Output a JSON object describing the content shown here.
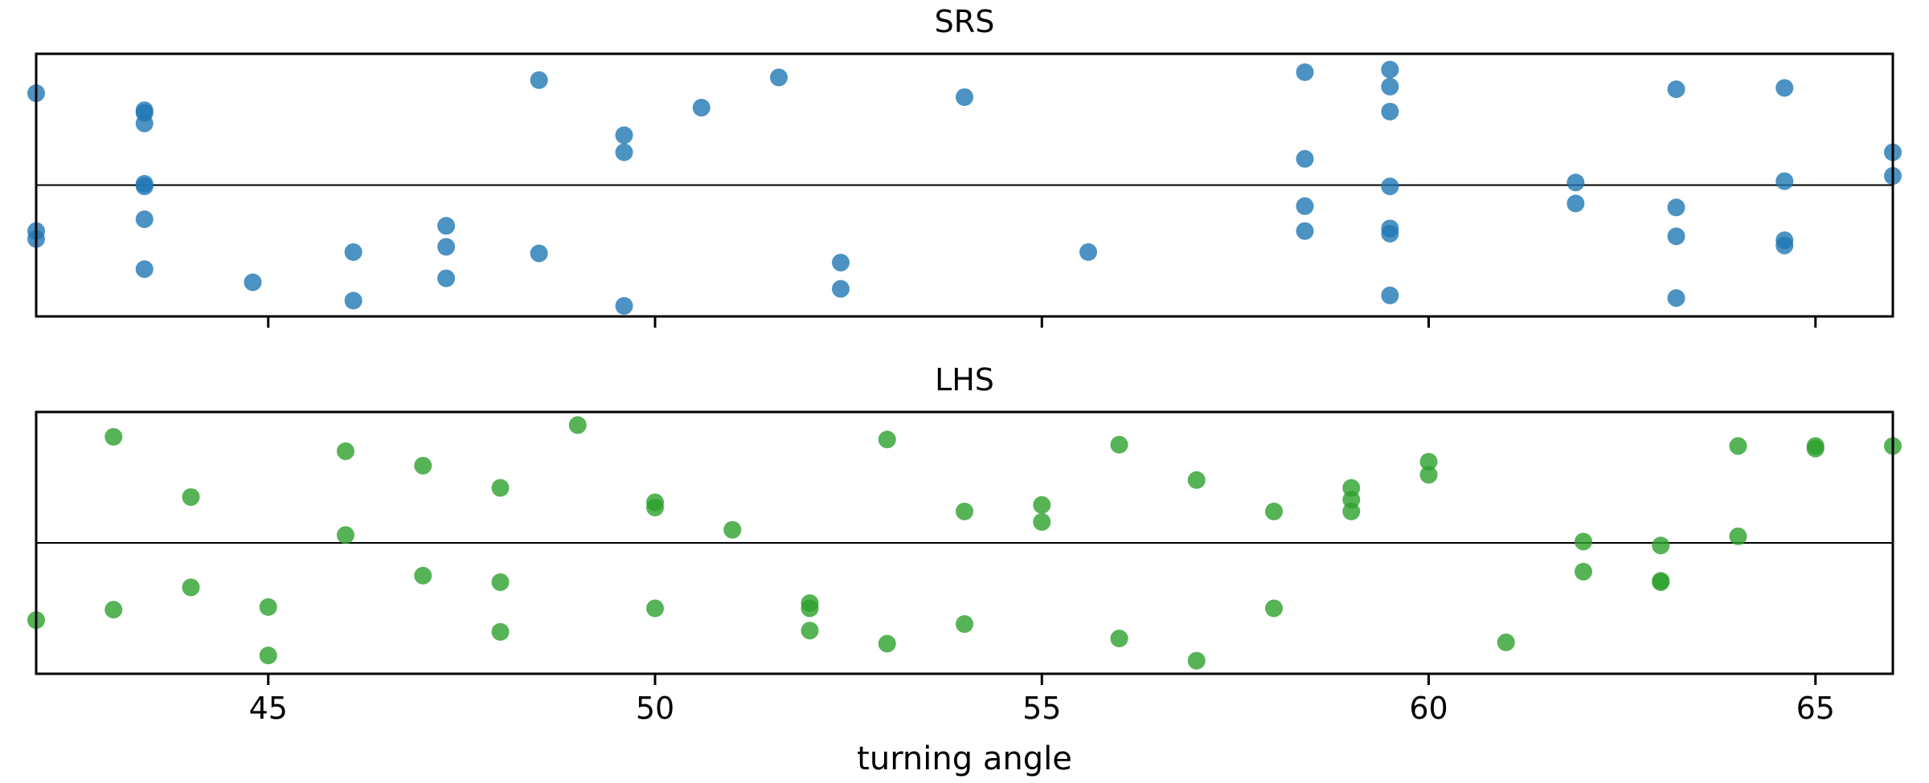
{
  "chart_data": [
    {
      "type": "scatter",
      "title": "SRS",
      "color": "#1f77b4",
      "xlim": [
        42,
        66
      ],
      "ylim": [
        -1,
        1
      ],
      "xticks": [
        45,
        50,
        55,
        60,
        65
      ],
      "show_tick_labels": false,
      "points": [
        {
          "x": 42.0,
          "y": 0.7
        },
        {
          "x": 42.0,
          "y": -0.35
        },
        {
          "x": 42.0,
          "y": -0.41
        },
        {
          "x": 43.4,
          "y": 0.57
        },
        {
          "x": 43.4,
          "y": 0.55
        },
        {
          "x": 43.4,
          "y": 0.47
        },
        {
          "x": 43.4,
          "y": 0.01
        },
        {
          "x": 43.4,
          "y": -0.01
        },
        {
          "x": 43.4,
          "y": -0.26
        },
        {
          "x": 43.4,
          "y": -0.64
        },
        {
          "x": 44.8,
          "y": -0.74
        },
        {
          "x": 46.1,
          "y": -0.51
        },
        {
          "x": 46.1,
          "y": -0.88
        },
        {
          "x": 47.3,
          "y": -0.31
        },
        {
          "x": 47.3,
          "y": -0.47
        },
        {
          "x": 47.3,
          "y": -0.71
        },
        {
          "x": 48.5,
          "y": 0.8
        },
        {
          "x": 48.5,
          "y": -0.52
        },
        {
          "x": 49.6,
          "y": 0.38
        },
        {
          "x": 49.6,
          "y": 0.25
        },
        {
          "x": 49.6,
          "y": -0.92
        },
        {
          "x": 50.6,
          "y": 0.59
        },
        {
          "x": 51.6,
          "y": 0.82
        },
        {
          "x": 52.4,
          "y": -0.59
        },
        {
          "x": 52.4,
          "y": -0.79
        },
        {
          "x": 54.0,
          "y": 0.67
        },
        {
          "x": 55.6,
          "y": -0.51
        },
        {
          "x": 58.4,
          "y": 0.86
        },
        {
          "x": 58.4,
          "y": 0.2
        },
        {
          "x": 58.4,
          "y": -0.16
        },
        {
          "x": 58.4,
          "y": -0.35
        },
        {
          "x": 59.5,
          "y": 0.88
        },
        {
          "x": 59.5,
          "y": 0.75
        },
        {
          "x": 59.5,
          "y": 0.56
        },
        {
          "x": 59.5,
          "y": -0.01
        },
        {
          "x": 59.5,
          "y": -0.33
        },
        {
          "x": 59.5,
          "y": -0.37
        },
        {
          "x": 59.5,
          "y": -0.84
        },
        {
          "x": 61.9,
          "y": 0.02
        },
        {
          "x": 61.9,
          "y": -0.14
        },
        {
          "x": 63.2,
          "y": 0.73
        },
        {
          "x": 63.2,
          "y": -0.17
        },
        {
          "x": 63.2,
          "y": -0.39
        },
        {
          "x": 63.2,
          "y": -0.86
        },
        {
          "x": 64.6,
          "y": 0.74
        },
        {
          "x": 64.6,
          "y": 0.03
        },
        {
          "x": 64.6,
          "y": -0.42
        },
        {
          "x": 64.6,
          "y": -0.46
        },
        {
          "x": 66.0,
          "y": 0.25
        },
        {
          "x": 66.0,
          "y": 0.07
        }
      ]
    },
    {
      "type": "scatter",
      "title": "LHS",
      "color": "#2ca02c",
      "xlim": [
        42,
        66
      ],
      "ylim": [
        -1,
        1
      ],
      "xticks": [
        45,
        50,
        55,
        60,
        65
      ],
      "show_tick_labels": true,
      "xlabel": "turning angle",
      "points": [
        {
          "x": 42,
          "y": -0.59
        },
        {
          "x": 43,
          "y": 0.81
        },
        {
          "x": 43,
          "y": -0.51
        },
        {
          "x": 44,
          "y": 0.35
        },
        {
          "x": 44,
          "y": -0.34
        },
        {
          "x": 45,
          "y": -0.49
        },
        {
          "x": 45,
          "y": -0.86
        },
        {
          "x": 46,
          "y": 0.7
        },
        {
          "x": 46,
          "y": 0.06
        },
        {
          "x": 47,
          "y": 0.59
        },
        {
          "x": 47,
          "y": -0.25
        },
        {
          "x": 48,
          "y": 0.42
        },
        {
          "x": 48,
          "y": -0.3
        },
        {
          "x": 48,
          "y": -0.68
        },
        {
          "x": 49,
          "y": 0.9
        },
        {
          "x": 50,
          "y": 0.31
        },
        {
          "x": 50,
          "y": 0.27
        },
        {
          "x": 50,
          "y": -0.5
        },
        {
          "x": 51,
          "y": 0.1
        },
        {
          "x": 52,
          "y": -0.46
        },
        {
          "x": 52,
          "y": -0.5
        },
        {
          "x": 52,
          "y": -0.67
        },
        {
          "x": 53,
          "y": 0.79
        },
        {
          "x": 53,
          "y": -0.77
        },
        {
          "x": 54,
          "y": 0.24
        },
        {
          "x": 54,
          "y": -0.62
        },
        {
          "x": 55,
          "y": 0.29
        },
        {
          "x": 55,
          "y": 0.16
        },
        {
          "x": 56,
          "y": 0.75
        },
        {
          "x": 56,
          "y": -0.73
        },
        {
          "x": 57,
          "y": 0.48
        },
        {
          "x": 57,
          "y": -0.9
        },
        {
          "x": 58,
          "y": 0.24
        },
        {
          "x": 58,
          "y": -0.5
        },
        {
          "x": 59,
          "y": 0.42
        },
        {
          "x": 59,
          "y": 0.33
        },
        {
          "x": 59,
          "y": 0.24
        },
        {
          "x": 60,
          "y": 0.62
        },
        {
          "x": 60,
          "y": 0.52
        },
        {
          "x": 61,
          "y": -0.76
        },
        {
          "x": 62,
          "y": 0.01
        },
        {
          "x": 62,
          "y": -0.22
        },
        {
          "x": 63,
          "y": -0.02
        },
        {
          "x": 63,
          "y": -0.29
        },
        {
          "x": 63,
          "y": -0.3
        },
        {
          "x": 64,
          "y": 0.74
        },
        {
          "x": 64,
          "y": 0.05
        },
        {
          "x": 65,
          "y": 0.74
        },
        {
          "x": 65,
          "y": 0.72
        },
        {
          "x": 66,
          "y": 0.74
        }
      ]
    }
  ]
}
